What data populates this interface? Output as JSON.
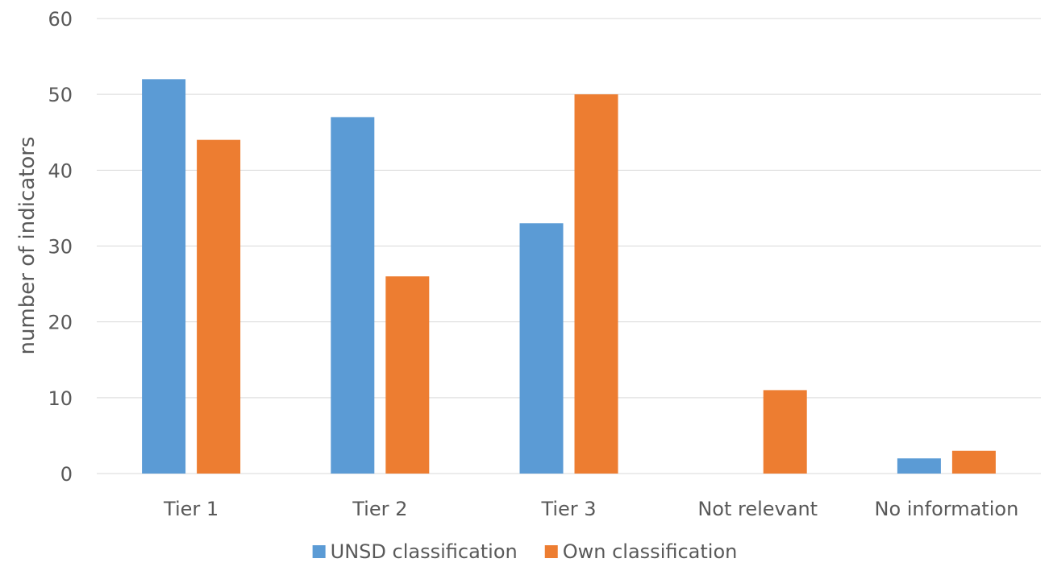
{
  "chart_data": {
    "type": "bar",
    "title": "",
    "xlabel": "",
    "ylabel": "number of indicators",
    "ylim": [
      0,
      60
    ],
    "yticks": [
      0,
      10,
      20,
      30,
      40,
      50,
      60
    ],
    "grid": true,
    "legend_position": "bottom",
    "categories": [
      "Tier 1",
      "Tier 2",
      "Tier 3",
      "Not relevant",
      "No information"
    ],
    "series": [
      {
        "name": "UNSD classification",
        "color": "#5b9bd5",
        "values": [
          52,
          47,
          33,
          0,
          2
        ]
      },
      {
        "name": "Own classification",
        "color": "#ed7d31",
        "values": [
          44,
          26,
          50,
          11,
          3
        ]
      }
    ]
  }
}
